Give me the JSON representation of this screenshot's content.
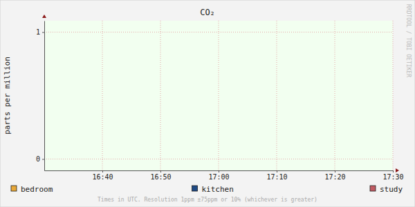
{
  "chart_data": {
    "type": "line",
    "title": "CO₂",
    "y_label": "parts per million",
    "annotations": [
      "Times in UTC. Resolution 1ppm ±75ppm or 10% (whichever is greater)",
      "RRDTOOL / TOBI OETIKER"
    ],
    "x": [],
    "series": [
      {
        "name": "bedroom",
        "color": "#e8a838",
        "values": []
      },
      {
        "name": "kitchen",
        "color": "#1f4a84",
        "values": []
      },
      {
        "name": "study",
        "color": "#c05a62",
        "values": []
      }
    ],
    "xlim": [
      "16:30",
      "17:30"
    ],
    "xticks": [
      "16:40",
      "16:50",
      "17:00",
      "17:10",
      "17:20",
      "17:30"
    ],
    "ylim": [
      -0.09,
      1.09
    ],
    "yticks": [
      0,
      1
    ],
    "grid": true,
    "legend": "bottom"
  }
}
